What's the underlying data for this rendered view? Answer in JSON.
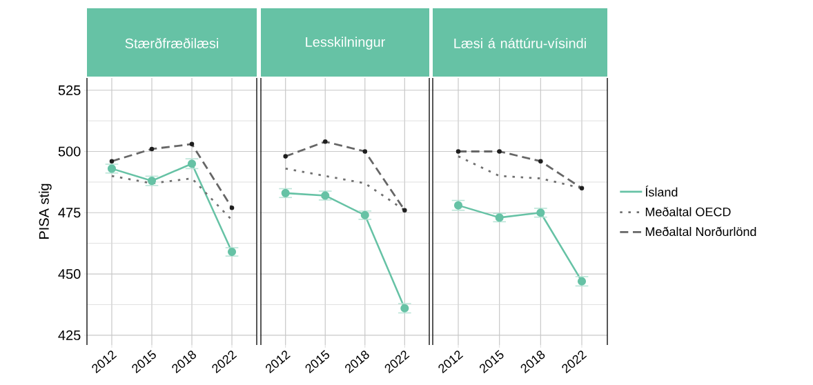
{
  "chart_data": [
    {
      "type": "line",
      "title": "Stærðfræðilæsi",
      "ylabel": "PISA stig",
      "categories": [
        "2012",
        "2015",
        "2018",
        "2022"
      ],
      "series": [
        {
          "color": "#66c2a5",
          "values": [
            493,
            488,
            495,
            459
          ],
          "errors": [
            1.8,
            1.9,
            2,
            1.7
          ],
          "marker": "circle",
          "line_style": "solid"
        },
        {
          "color": "#707070",
          "values": [
            490,
            487,
            489,
            472
          ],
          "marker": "none",
          "line_style": "dotted"
        },
        {
          "color": "#666666",
          "values": [
            496,
            501,
            503,
            477
          ],
          "marker": "circle",
          "line_style": "dashed"
        }
      ],
      "ylim": [
        421,
        530
      ],
      "yticks": [
        425,
        450,
        475,
        500,
        525
      ],
      "grid": true
    },
    {
      "type": "line",
      "title": "Lesskilningur",
      "categories": [
        "2012",
        "2015",
        "2018",
        "2022"
      ],
      "series": [
        {
          "color": "#66c2a5",
          "values": [
            483,
            482,
            474,
            436
          ],
          "errors": [
            1.8,
            1.8,
            1.7,
            1.9
          ],
          "marker": "circle",
          "line_style": "solid"
        },
        {
          "color": "#707070",
          "values": [
            493,
            490,
            487,
            476
          ],
          "marker": "none",
          "line_style": "dotted"
        },
        {
          "color": "#666666",
          "values": [
            498,
            504,
            500,
            476
          ],
          "marker": "circle",
          "line_style": "dashed"
        }
      ],
      "ylim": [
        421,
        530
      ],
      "yticks": [
        425,
        450,
        475,
        500,
        525
      ],
      "grid": true,
      "tick_labels": "x"
    },
    {
      "type": "line",
      "title": "Læsi á náttúru-vísindi",
      "categories": [
        "2012",
        "2015",
        "2018",
        "2022"
      ],
      "series": [
        {
          "name": "Ísland",
          "color": "#66c2a5",
          "values": [
            478,
            473,
            475,
            447
          ],
          "errors": [
            2,
            1.7,
            1.8,
            1.9
          ],
          "marker": "circle",
          "line_style": "solid"
        },
        {
          "name": "Meðaltal OECD",
          "color": "#707070",
          "values": [
            498,
            490,
            489,
            485
          ],
          "marker": "none",
          "line_style": "dotted"
        },
        {
          "name": "Meðaltal Norðurlönd",
          "color": "#666666",
          "values": [
            500,
            500,
            496,
            485
          ],
          "marker": "circle",
          "line_style": "dashed"
        }
      ],
      "ylim": [
        421,
        530
      ],
      "yticks": [
        425,
        450,
        475,
        500,
        525
      ],
      "grid": true,
      "tick_labels": "x",
      "legend": "right"
    }
  ]
}
